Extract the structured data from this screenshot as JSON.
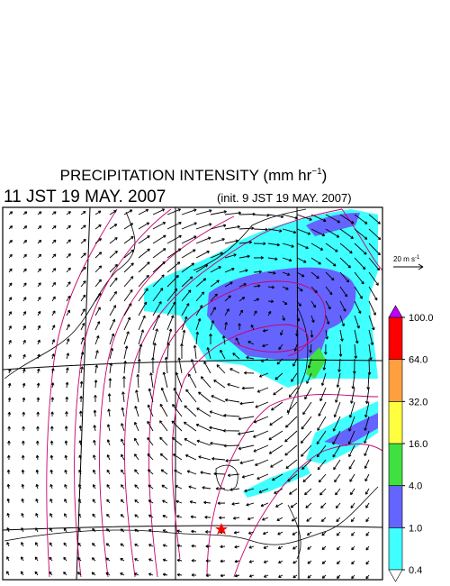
{
  "header": {
    "title": "PRECIPITATION INTENSITY (mm hr",
    "title_superscript": "−1",
    "title_end": ")",
    "time": "11 JST 19 MAY. 2007",
    "init": "(init. 9 JST 19 MAY. 2007)"
  },
  "wind_scale": {
    "label": "20 m s",
    "superscript": "-1"
  },
  "colorbar": {
    "levels": [
      {
        "value": 0.4,
        "label": "0.4"
      },
      {
        "value": 1,
        "label": "1.0"
      },
      {
        "value": 4,
        "label": "4.0"
      },
      {
        "value": 16,
        "label": "16.0"
      },
      {
        "value": 32,
        "label": "32.0"
      },
      {
        "value": 64,
        "label": "64.0"
      },
      {
        "value": 100,
        "label": "100.0"
      }
    ],
    "colors": [
      "#40ffff",
      "#6464ff",
      "#40e040",
      "#ffff40",
      "#ffa040",
      "#ff0000"
    ],
    "under_color": "#ffffff",
    "over_color": "#c000ff"
  }
}
